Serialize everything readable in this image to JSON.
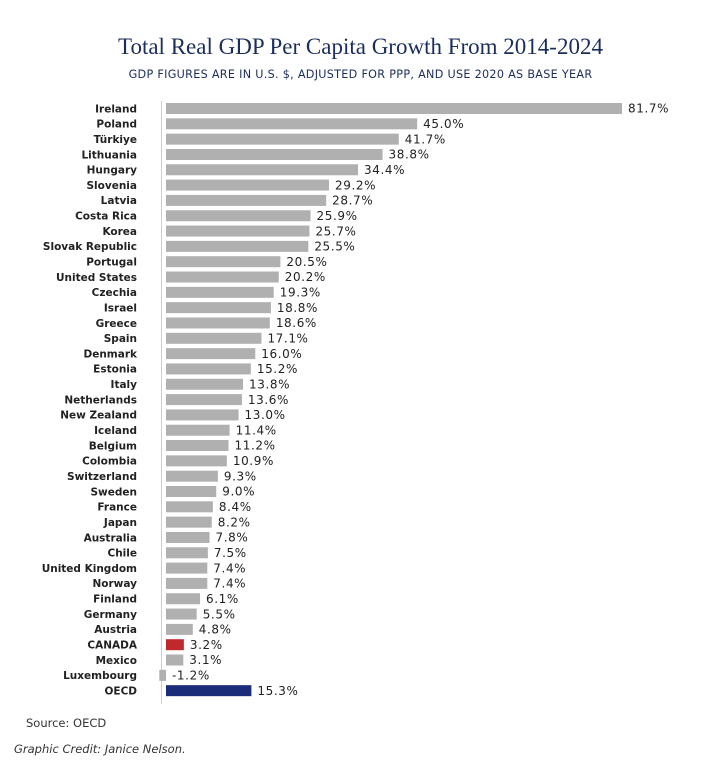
{
  "chart_data": {
    "type": "bar",
    "orientation": "horizontal",
    "title": "Total Real GDP Per Capita Growth From 2014-2024",
    "subtitle": "GDP FIGURES ARE IN U.S. $, ADJUSTED FOR PPP, AND USE 2020 AS BASE YEAR",
    "xlim": [
      -1.2,
      81.7
    ],
    "grid": false,
    "categories": [
      "Ireland",
      "Poland",
      "Türkiye",
      "Lithuania",
      "Hungary",
      "Slovenia",
      "Latvia",
      "Costa Rica",
      "Korea",
      "Slovak Republic",
      "Portugal",
      "United States",
      "Czechia",
      "Israel",
      "Greece",
      "Spain",
      "Denmark",
      "Estonia",
      "Italy",
      "Netherlands",
      "New Zealand",
      "Iceland",
      "Belgium",
      "Colombia",
      "Switzerland",
      "Sweden",
      "France",
      "Japan",
      "Australia",
      "Chile",
      "United Kingdom",
      "Norway",
      "Finland",
      "Germany",
      "Austria",
      "CANADA",
      "Mexico",
      "Luxembourg",
      "OECD"
    ],
    "values": [
      81.7,
      45.0,
      41.7,
      38.8,
      34.4,
      29.2,
      28.7,
      25.9,
      25.7,
      25.5,
      20.5,
      20.2,
      19.3,
      18.8,
      18.6,
      17.1,
      16.0,
      15.2,
      13.8,
      13.6,
      13.0,
      11.4,
      11.2,
      10.9,
      9.3,
      9.0,
      8.4,
      8.2,
      7.8,
      7.5,
      7.4,
      7.4,
      6.1,
      5.5,
      4.8,
      3.2,
      3.1,
      -1.2,
      15.3
    ],
    "value_labels": [
      "81.7%",
      "45.0%",
      "41.7%",
      "38.8%",
      "34.4%",
      "29.2%",
      "28.7%",
      "25.9%",
      "25.7%",
      "25.5%",
      "20.5%",
      "20.2%",
      "19.3%",
      "18.8%",
      "18.6%",
      "17.1%",
      "16.0%",
      "15.2%",
      "13.8%",
      "13.6%",
      "13.0%",
      "11.4%",
      "11.2%",
      "10.9%",
      "9.3%",
      "9.0%",
      "8.4%",
      "8.2%",
      "7.8%",
      "7.5%",
      "7.4%",
      "7.4%",
      "6.1%",
      "5.5%",
      "4.8%",
      "3.2%",
      "3.1%",
      "-1.2%",
      "15.3%"
    ],
    "highlights": {
      "CANADA": "#c0292b",
      "OECD": "#1b2d78"
    },
    "colors": {
      "default_bar": "#b0b0b0",
      "axis": "#cccccc"
    }
  },
  "source": "Source: OECD",
  "credit": "Graphic Credit: Janice Nelson."
}
